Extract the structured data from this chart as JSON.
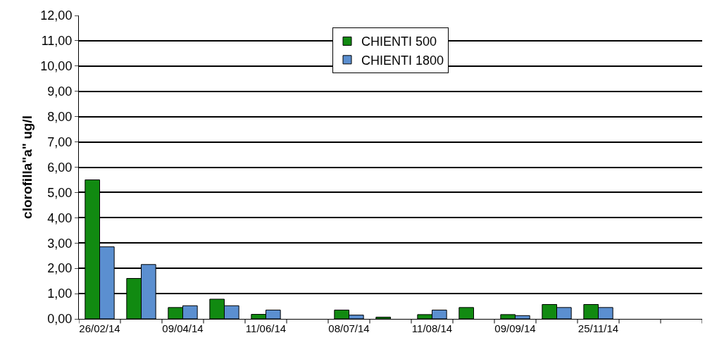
{
  "chart_data": {
    "type": "bar",
    "ylabel": "clorofilla\"a\" ug/l",
    "categories": [
      "26/02/14",
      null,
      "09/04/14",
      null,
      "11/06/14",
      null,
      "08/07/14",
      null,
      "11/08/14",
      null,
      "09/09/14",
      null,
      "25/11/14",
      null,
      null
    ],
    "series": [
      {
        "name": "CHIENTI 500",
        "color": "#118a11",
        "values": [
          5.5,
          1.6,
          0.45,
          0.78,
          0.18,
          null,
          0.35,
          0.07,
          0.17,
          0.45,
          0.17,
          0.57,
          0.57,
          null,
          null
        ]
      },
      {
        "name": "CHIENTI 1800",
        "color": "#5b8fd0",
        "values": [
          2.85,
          2.15,
          0.52,
          0.52,
          0.35,
          null,
          0.15,
          null,
          0.35,
          null,
          0.13,
          0.45,
          0.45,
          null,
          null
        ]
      }
    ],
    "ylim": [
      0,
      12
    ],
    "yticks": [
      {
        "value": 0,
        "label": "0,00"
      },
      {
        "value": 1,
        "label": "1,00"
      },
      {
        "value": 2,
        "label": "2,00"
      },
      {
        "value": 3,
        "label": "3,00"
      },
      {
        "value": 4,
        "label": "4,00"
      },
      {
        "value": 5,
        "label": "5,00"
      },
      {
        "value": 6,
        "label": "6,00"
      },
      {
        "value": 7,
        "label": "7,00"
      },
      {
        "value": 8,
        "label": "8,00"
      },
      {
        "value": 9,
        "label": "9,00"
      },
      {
        "value": 10,
        "label": "10,00"
      },
      {
        "value": 11,
        "label": "11,00"
      },
      {
        "value": 12,
        "label": "12,00"
      }
    ],
    "grid": "y",
    "legend": "top"
  }
}
